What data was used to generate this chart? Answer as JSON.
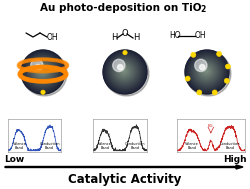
{
  "title": "Au photo-deposition on TiO",
  "title_sub2": "2",
  "bottom_label": "Catalytic Activity",
  "low_label": "Low",
  "high_label": "High",
  "bg_color": "#ffffff",
  "blue_color": "#3355bb",
  "gray_color": "#333333",
  "red_color": "#cc2222",
  "gold_color": "#FFD700",
  "gold_edge": "#cc9900",
  "ring_color": "#FF8800",
  "sphere_dark": "#1a2030",
  "sphere_mid": "#4a6070",
  "sphere_highlight": "#a0b8c8"
}
